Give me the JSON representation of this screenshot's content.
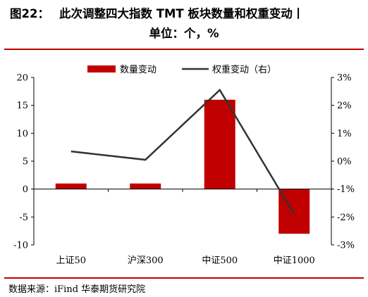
{
  "figure": {
    "number": "图22：",
    "title_line1": "此次调整四大指数 TMT 板块数量和权重变动丨",
    "title_line2": "单位：个，%",
    "source": "数据来源：iFind 华泰期货研究院"
  },
  "chart_data": {
    "type": "bar",
    "categories": [
      "上证50",
      "沪深300",
      "中证500",
      "中证1000"
    ],
    "series": [
      {
        "name": "数量变动",
        "type": "bar",
        "axis": "left",
        "color": "#c00000",
        "values": [
          1,
          1,
          16,
          -8
        ]
      },
      {
        "name": "权重变动（右）",
        "type": "line",
        "axis": "right",
        "color": "#333333",
        "values": [
          0.35,
          0.05,
          2.55,
          -1.9
        ]
      }
    ],
    "ylim": [
      -10,
      20
    ],
    "yticks": [
      -10,
      -5,
      0,
      5,
      10,
      15,
      20
    ],
    "ytick_labels": [
      "-10",
      "-5",
      "0",
      "5",
      "10",
      "15",
      "20"
    ],
    "y2lim": [
      -3,
      3
    ],
    "y2ticks": [
      -3,
      -2,
      -1,
      0,
      1,
      2,
      3
    ],
    "y2tick_labels": [
      "-3%",
      "-2%",
      "-1%",
      "0%",
      "1%",
      "2%",
      "3%"
    ],
    "legend_position": "top",
    "grid": false
  }
}
